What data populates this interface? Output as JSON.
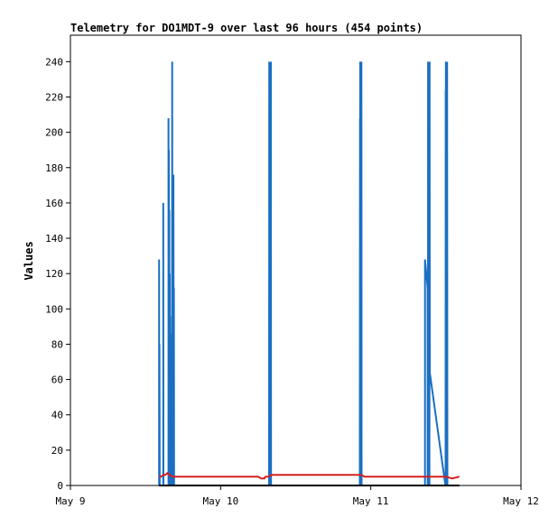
{
  "chart_data": {
    "type": "line",
    "title": "Telemetry for DO1MDT-9 over last 96 hours (454 points)",
    "xlabel": "",
    "ylabel": "Values",
    "x_ticks": [
      "May 9",
      "May 10",
      "May 11",
      "May 12"
    ],
    "y_ticks": [
      "0",
      "20",
      "40",
      "60",
      "80",
      "100",
      "120",
      "140",
      "160",
      "180",
      "200",
      "220",
      "240"
    ],
    "xlim": [
      "May 9 00:00",
      "May 12 00:00"
    ],
    "ylim": [
      0,
      255
    ],
    "grid": false,
    "legend": "none",
    "series": [
      {
        "color": "#1a6fc2",
        "points": [
          [
            "May 9 14:10",
            0
          ],
          [
            "May 9 14:10",
            128
          ],
          [
            "May 9 14:12",
            0
          ],
          [
            "May 9 14:14",
            80
          ],
          [
            "May 9 14:16",
            0
          ],
          [
            "May 9 14:50",
            0
          ],
          [
            "May 9 14:50",
            160
          ],
          [
            "May 9 14:52",
            0
          ],
          [
            "May 9 15:40",
            0
          ],
          [
            "May 9 15:40",
            208
          ],
          [
            "May 9 15:42",
            0
          ],
          [
            "May 9 15:44",
            190
          ],
          [
            "May 9 15:46",
            0
          ],
          [
            "May 9 15:48",
            156
          ],
          [
            "May 9 15:50",
            0
          ],
          [
            "May 9 15:52",
            120
          ],
          [
            "May 9 15:54",
            0
          ],
          [
            "May 9 15:56",
            86
          ],
          [
            "May 9 15:58",
            0
          ],
          [
            "May 9 16:00",
            52
          ],
          [
            "May 9 16:02",
            0
          ],
          [
            "May 9 16:06",
            16
          ],
          [
            "May 9 16:08",
            0
          ],
          [
            "May 9 16:12",
            96
          ],
          [
            "May 9 16:14",
            0
          ],
          [
            "May 9 16:16",
            240
          ],
          [
            "May 9 16:18",
            0
          ],
          [
            "May 9 16:22",
            48
          ],
          [
            "May 9 16:24",
            0
          ],
          [
            "May 9 16:28",
            176
          ],
          [
            "May 9 16:30",
            0
          ],
          [
            "May 9 16:32",
            112
          ],
          [
            "May 9 16:34",
            0
          ],
          [
            "May 10 07:45",
            0
          ],
          [
            "May 10 07:46",
            240
          ],
          [
            "May 10 07:47",
            0
          ],
          [
            "May 10 07:48",
            240
          ],
          [
            "May 10 07:49",
            0
          ],
          [
            "May 10 07:50",
            240
          ],
          [
            "May 10 07:51",
            0
          ],
          [
            "May 10 07:52",
            240
          ],
          [
            "May 10 07:53",
            0
          ],
          [
            "May 10 07:54",
            240
          ],
          [
            "May 10 07:55",
            0
          ],
          [
            "May 10 07:56",
            240
          ],
          [
            "May 10 07:57",
            0
          ],
          [
            "May 10 07:58",
            240
          ],
          [
            "May 10 07:59",
            0
          ],
          [
            "May 10 08:00",
            224
          ],
          [
            "May 10 08:01",
            0
          ],
          [
            "May 10 08:02",
            240
          ],
          [
            "May 10 08:04",
            0
          ],
          [
            "May 10 22:15",
            0
          ],
          [
            "May 10 22:16",
            208
          ],
          [
            "May 10 22:17",
            0
          ],
          [
            "May 10 22:18",
            240
          ],
          [
            "May 10 22:19",
            0
          ],
          [
            "May 10 22:20",
            240
          ],
          [
            "May 10 22:21",
            0
          ],
          [
            "May 10 22:22",
            240
          ],
          [
            "May 10 22:23",
            0
          ],
          [
            "May 10 22:24",
            240
          ],
          [
            "May 10 22:25",
            0
          ],
          [
            "May 10 22:26",
            240
          ],
          [
            "May 10 22:27",
            0
          ],
          [
            "May 10 22:28",
            224
          ],
          [
            "May 10 22:29",
            0
          ],
          [
            "May 10 22:30",
            240
          ],
          [
            "May 10 22:32",
            0
          ],
          [
            "May 11 08:40",
            0
          ],
          [
            "May 11 08:40",
            128
          ],
          [
            "May 11 09:05",
            112
          ],
          [
            "May 11 09:06",
            0
          ],
          [
            "May 11 09:07",
            120
          ],
          [
            "May 11 09:08",
            0
          ],
          [
            "May 11 09:09",
            240
          ],
          [
            "May 11 09:10",
            0
          ],
          [
            "May 11 09:11",
            48
          ],
          [
            "May 11 09:12",
            0
          ],
          [
            "May 11 09:13",
            24
          ],
          [
            "May 11 09:14",
            0
          ],
          [
            "May 11 09:16",
            0
          ],
          [
            "May 11 09:20",
            80
          ],
          [
            "May 11 09:22",
            0
          ],
          [
            "May 11 09:24",
            240
          ],
          [
            "May 11 09:26",
            64
          ],
          [
            "May 11 11:55",
            0
          ],
          [
            "May 11 11:57",
            0
          ],
          [
            "May 11 11:58",
            224
          ],
          [
            "May 11 11:59",
            0
          ],
          [
            "May 11 12:00",
            240
          ],
          [
            "May 11 12:01",
            0
          ],
          [
            "May 11 12:02",
            48
          ],
          [
            "May 11 12:03",
            0
          ],
          [
            "May 11 12:04",
            72
          ],
          [
            "May 11 12:05",
            0
          ],
          [
            "May 11 12:06",
            240
          ],
          [
            "May 11 12:07",
            0
          ],
          [
            "May 11 12:08",
            144
          ],
          [
            "May 11 12:09",
            0
          ],
          [
            "May 11 12:10",
            96
          ],
          [
            "May 11 12:11",
            0
          ],
          [
            "May 11 12:12",
            240
          ],
          [
            "May 11 12:14",
            0
          ]
        ]
      },
      {
        "color": "#d42020",
        "points": [
          [
            "May 9 14:10",
            5
          ],
          [
            "May 9 14:30",
            5
          ],
          [
            "May 9 14:50",
            6
          ],
          [
            "May 9 15:10",
            6
          ],
          [
            "May 9 15:30",
            7
          ],
          [
            "May 9 15:50",
            6
          ],
          [
            "May 9 16:20",
            5
          ],
          [
            "May 10 00:00",
            5
          ],
          [
            "May 10 06:00",
            5
          ],
          [
            "May 10 06:30",
            4
          ],
          [
            "May 10 07:00",
            4
          ],
          [
            "May 10 07:10",
            5
          ],
          [
            "May 10 07:40",
            5
          ],
          [
            "May 10 08:10",
            6
          ],
          [
            "May 10 16:00",
            6
          ],
          [
            "May 10 22:30",
            6
          ],
          [
            "May 10 23:00",
            5
          ],
          [
            "May 11 00:00",
            5
          ],
          [
            "May 11 00:30",
            5
          ],
          [
            "May 11 01:30",
            5
          ],
          [
            "May 11 09:00",
            5
          ],
          [
            "May 11 12:00",
            5
          ],
          [
            "May 11 13:00",
            4
          ],
          [
            "May 11 14:10",
            5
          ]
        ]
      },
      {
        "color": "#000000",
        "points": [
          [
            "May 9 14:10",
            0
          ],
          [
            "May 11 14:10",
            0
          ]
        ]
      }
    ]
  }
}
